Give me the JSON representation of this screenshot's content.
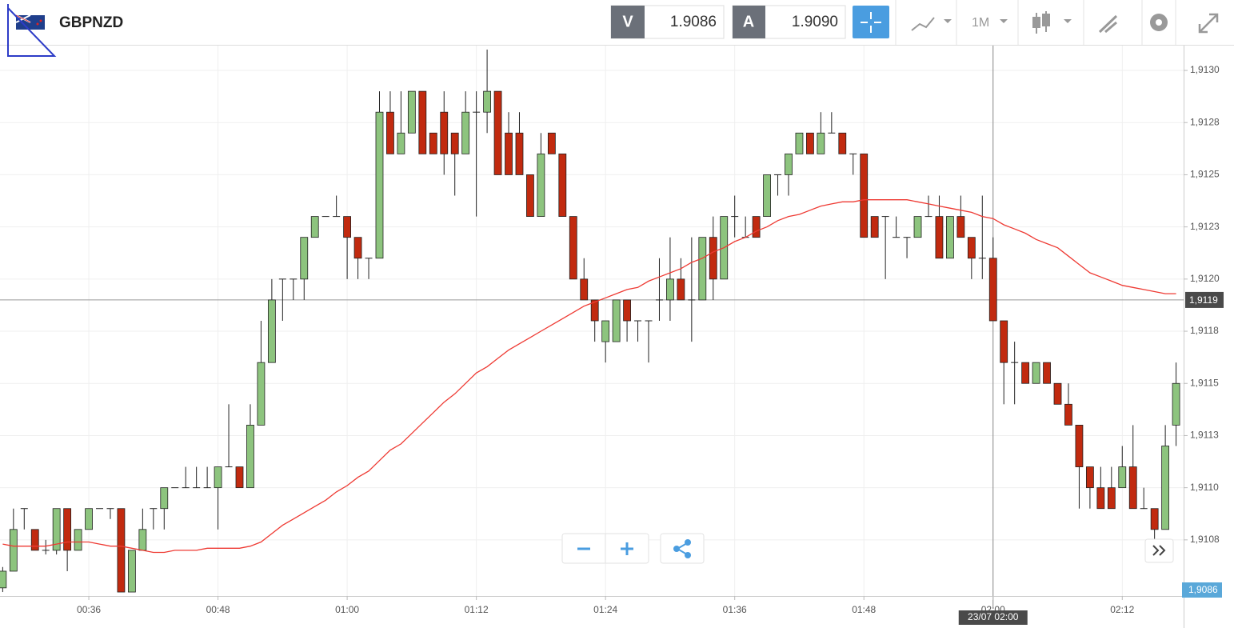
{
  "toolbar": {
    "bid_tag": "V",
    "bid": "1.9086",
    "ask_tag": "A",
    "ask": "1.9090",
    "timeframe": "1M"
  },
  "chart_data": {
    "type": "candlestick",
    "title": "GBPNZD",
    "x": [
      28,
      29,
      30,
      31,
      32,
      33,
      34,
      35,
      36,
      37,
      38,
      39,
      40,
      41,
      42,
      43,
      44,
      45,
      46,
      47,
      48,
      49,
      50,
      51,
      52,
      53,
      54,
      55,
      56,
      57,
      58,
      59,
      60,
      61,
      62,
      63,
      64,
      65,
      66,
      67,
      68,
      69,
      70,
      71,
      72,
      73,
      74,
      75,
      76,
      77,
      78,
      79,
      80,
      81,
      82,
      83,
      84,
      85,
      86,
      87,
      88,
      89,
      90,
      91,
      92,
      93,
      94,
      95,
      96,
      97,
      98,
      99,
      100,
      101,
      102,
      103,
      104,
      105,
      106,
      107,
      108,
      109,
      110,
      111,
      112,
      113,
      114,
      115,
      116,
      117,
      118,
      119,
      120,
      121,
      122,
      123,
      124,
      125,
      126,
      127,
      128,
      129,
      130,
      131,
      132,
      133,
      134,
      135,
      136,
      137
    ],
    "open": [
      1.91052,
      1.9106,
      1.9109,
      1.9108,
      1.9107,
      1.9107,
      1.9109,
      1.9107,
      1.9108,
      1.9109,
      1.9109,
      1.9109,
      1.9105,
      1.9107,
      1.9109,
      1.9109,
      1.911,
      1.911,
      1.911,
      1.911,
      1.911,
      1.9111,
      1.9111,
      1.911,
      1.9113,
      1.9116,
      1.912,
      1.912,
      1.912,
      1.9122,
      1.9123,
      1.9123,
      1.9123,
      1.9122,
      1.9121,
      1.9121,
      1.9128,
      1.9126,
      1.9127,
      1.9129,
      1.9127,
      1.9128,
      1.9127,
      1.9126,
      1.9128,
      1.9128,
      1.9129,
      1.9127,
      1.9127,
      1.9125,
      1.9123,
      1.9127,
      1.9126,
      1.9123,
      1.912,
      1.9119,
      1.9117,
      1.9117,
      1.9119,
      1.9118,
      1.9118,
      1.9119,
      1.9119,
      1.912,
      1.9119,
      1.9119,
      1.9122,
      1.912,
      1.9123,
      1.9122,
      1.9123,
      1.9123,
      1.9125,
      1.9125,
      1.9126,
      1.9127,
      1.9126,
      1.9127,
      1.9127,
      1.9126,
      1.9126,
      1.9123,
      1.9123,
      1.9122,
      1.9122,
      1.9122,
      1.9123,
      1.9123,
      1.9121,
      1.9123,
      1.9122,
      1.9121,
      1.9121,
      1.9118,
      1.9116,
      1.9116,
      1.9115,
      1.9116,
      1.9115,
      1.9114,
      1.9113,
      1.9111,
      1.911,
      1.911,
      1.911,
      1.9111,
      1.9109,
      1.9109,
      1.9108,
      1.9113
    ],
    "high": [
      1.91062,
      1.9109,
      1.9109,
      1.9108,
      1.91075,
      1.9109,
      1.9109,
      1.9108,
      1.9109,
      1.9109,
      1.9109,
      1.9109,
      1.9107,
      1.9109,
      1.9109,
      1.911,
      1.911,
      1.9111,
      1.9111,
      1.9111,
      1.9111,
      1.9114,
      1.9111,
      1.9114,
      1.9118,
      1.912,
      1.912,
      1.912,
      1.9122,
      1.9123,
      1.9123,
      1.9124,
      1.9123,
      1.9122,
      1.9121,
      1.9129,
      1.9129,
      1.9129,
      1.9129,
      1.9129,
      1.9127,
      1.9129,
      1.9127,
      1.9129,
      1.9129,
      1.9131,
      1.9129,
      1.9128,
      1.9128,
      1.9125,
      1.9127,
      1.9127,
      1.9126,
      1.9123,
      1.9121,
      1.9119,
      1.9118,
      1.9119,
      1.9119,
      1.9118,
      1.9118,
      1.9121,
      1.9122,
      1.9121,
      1.9122,
      1.9122,
      1.9123,
      1.9123,
      1.9124,
      1.9123,
      1.9123,
      1.9125,
      1.9125,
      1.9126,
      1.9127,
      1.9127,
      1.9128,
      1.9128,
      1.9127,
      1.9126,
      1.9126,
      1.9123,
      1.9123,
      1.9123,
      1.9122,
      1.9123,
      1.9124,
      1.9124,
      1.9123,
      1.9124,
      1.9122,
      1.9124,
      1.9122,
      1.9118,
      1.9117,
      1.9116,
      1.9116,
      1.9116,
      1.9115,
      1.9115,
      1.9113,
      1.9111,
      1.9111,
      1.9111,
      1.9112,
      1.9113,
      1.911,
      1.9109,
      1.9113,
      1.9116
    ],
    "low": [
      1.9105,
      1.9106,
      1.9108,
      1.9107,
      1.91068,
      1.91068,
      1.9106,
      1.9107,
      1.9108,
      1.9109,
      1.91085,
      1.9105,
      1.9105,
      1.9107,
      1.9108,
      1.9108,
      1.911,
      1.911,
      1.911,
      1.911,
      1.9108,
      1.9111,
      1.911,
      1.911,
      1.9113,
      1.9116,
      1.9118,
      1.9119,
      1.9119,
      1.9122,
      1.9123,
      1.9123,
      1.912,
      1.912,
      1.912,
      1.9121,
      1.9126,
      1.9126,
      1.9127,
      1.9126,
      1.9126,
      1.9125,
      1.9124,
      1.9126,
      1.9123,
      1.9127,
      1.9125,
      1.9125,
      1.9125,
      1.9123,
      1.9123,
      1.9126,
      1.9123,
      1.912,
      1.9119,
      1.9117,
      1.9116,
      1.9117,
      1.9117,
      1.9117,
      1.9116,
      1.9118,
      1.9118,
      1.9119,
      1.9117,
      1.9119,
      1.9119,
      1.912,
      1.9122,
      1.9122,
      1.9122,
      1.9123,
      1.9124,
      1.9124,
      1.9126,
      1.9126,
      1.9126,
      1.9127,
      1.9126,
      1.9125,
      1.9122,
      1.9122,
      1.912,
      1.9122,
      1.9121,
      1.9122,
      1.9123,
      1.9121,
      1.9121,
      1.9122,
      1.912,
      1.912,
      1.9118,
      1.9114,
      1.9114,
      1.9115,
      1.9115,
      1.9115,
      1.9114,
      1.9113,
      1.9109,
      1.9109,
      1.9109,
      1.9109,
      1.911,
      1.9109,
      1.9109,
      1.91075,
      1.9108,
      1.9112
    ],
    "close": [
      1.9106,
      1.9108,
      1.9109,
      1.9107,
      1.9107,
      1.9109,
      1.9107,
      1.9108,
      1.9109,
      1.9109,
      1.9109,
      1.9105,
      1.9107,
      1.9108,
      1.9109,
      1.911,
      1.911,
      1.911,
      1.911,
      1.911,
      1.9111,
      1.9111,
      1.911,
      1.9113,
      1.9116,
      1.9119,
      1.912,
      1.912,
      1.9122,
      1.9123,
      1.9123,
      1.9123,
      1.9122,
      1.9121,
      1.9121,
      1.9128,
      1.9126,
      1.9127,
      1.9129,
      1.9126,
      1.9126,
      1.9126,
      1.9126,
      1.9128,
      1.9128,
      1.9129,
      1.9125,
      1.9125,
      1.9125,
      1.9123,
      1.9126,
      1.9126,
      1.9123,
      1.912,
      1.9119,
      1.9118,
      1.9118,
      1.9119,
      1.9118,
      1.9118,
      1.9118,
      1.9119,
      1.912,
      1.9119,
      1.9119,
      1.9122,
      1.912,
      1.9123,
      1.9123,
      1.9122,
      1.9122,
      1.9125,
      1.9125,
      1.9126,
      1.9127,
      1.9126,
      1.9127,
      1.9127,
      1.9126,
      1.9126,
      1.9122,
      1.9122,
      1.9123,
      1.9122,
      1.9122,
      1.9123,
      1.9123,
      1.9121,
      1.9123,
      1.9122,
      1.9121,
      1.9121,
      1.9118,
      1.9116,
      1.9116,
      1.9115,
      1.9116,
      1.9115,
      1.9114,
      1.9113,
      1.9111,
      1.911,
      1.9109,
      1.9109,
      1.9111,
      1.9109,
      1.9109,
      1.9108,
      1.9112,
      1.9115
    ],
    "up_color": "#8dc47e",
    "down_color": "#c12a0f",
    "moving_average": {
      "color": "#ee3a33",
      "values": [
        1.91073,
        1.91072,
        1.91072,
        1.91072,
        1.91072,
        1.91073,
        1.91074,
        1.91074,
        1.91074,
        1.91073,
        1.91072,
        1.91072,
        1.91071,
        1.9107,
        1.91069,
        1.91069,
        1.9107,
        1.9107,
        1.9107,
        1.91071,
        1.91071,
        1.91071,
        1.91071,
        1.91072,
        1.91074,
        1.91078,
        1.91082,
        1.91085,
        1.91088,
        1.91091,
        1.91094,
        1.91098,
        1.91101,
        1.91105,
        1.91108,
        1.91113,
        1.91118,
        1.91121,
        1.91126,
        1.91131,
        1.91136,
        1.91141,
        1.91145,
        1.9115,
        1.91155,
        1.91158,
        1.91162,
        1.91166,
        1.91169,
        1.91172,
        1.91175,
        1.91178,
        1.91181,
        1.91184,
        1.91187,
        1.91189,
        1.91191,
        1.91193,
        1.91195,
        1.91196,
        1.91199,
        1.91201,
        1.91203,
        1.91205,
        1.91208,
        1.9121,
        1.91213,
        1.91215,
        1.91218,
        1.9122,
        1.91223,
        1.91225,
        1.91228,
        1.9123,
        1.91231,
        1.91233,
        1.91235,
        1.91236,
        1.91237,
        1.91237,
        1.91238,
        1.91238,
        1.91238,
        1.91238,
        1.91238,
        1.91237,
        1.91236,
        1.91235,
        1.91234,
        1.91233,
        1.91232,
        1.9123,
        1.91229,
        1.91226,
        1.91224,
        1.91222,
        1.91219,
        1.91217,
        1.91215,
        1.91211,
        1.91207,
        1.91203,
        1.91201,
        1.91199,
        1.91197,
        1.91196,
        1.91195,
        1.91194,
        1.91193,
        1.91193
      ]
    },
    "xlim": [
      27.75,
      137.7
    ],
    "xticks": [
      {
        "value": 36,
        "label": "00:36"
      },
      {
        "value": 48,
        "label": "00:48"
      },
      {
        "value": 60,
        "label": "01:00"
      },
      {
        "value": 72,
        "label": "01:12"
      },
      {
        "value": 84,
        "label": "01:24"
      },
      {
        "value": 96,
        "label": "01:36"
      },
      {
        "value": 108,
        "label": "01:48"
      },
      {
        "value": 120,
        "label": "02:00"
      },
      {
        "value": 132,
        "label": "02:12"
      }
    ],
    "ylim": [
      1.910481,
      1.913119
    ],
    "yticks": [
      {
        "value": 1.913,
        "label": "1,9130"
      },
      {
        "value": 1.91275,
        "label": "1,9128"
      },
      {
        "value": 1.9125,
        "label": "1,9125"
      },
      {
        "value": 1.91225,
        "label": "1,9123"
      },
      {
        "value": 1.912,
        "label": "1,9120"
      },
      {
        "value": 1.91175,
        "label": "1,9118"
      },
      {
        "value": 1.9115,
        "label": "1,9115"
      },
      {
        "value": 1.91125,
        "label": "1,9113"
      },
      {
        "value": 1.911,
        "label": "1,9110"
      },
      {
        "value": 1.91075,
        "label": "1,9108"
      }
    ],
    "grid": true,
    "crosshair": {
      "x": {
        "value": 120,
        "label": "23/07 02:00"
      },
      "y": {
        "value": 1.9119,
        "label": "1,9119"
      }
    },
    "bid_marker_label": "1,9086"
  }
}
